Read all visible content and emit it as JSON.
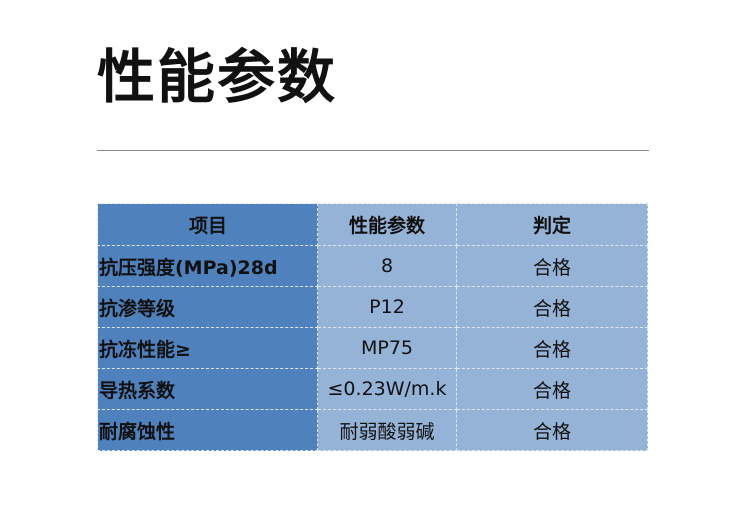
{
  "title": "性能参数",
  "table": {
    "headers": [
      "项目",
      "性能参数",
      "判定"
    ],
    "rows": [
      [
        "抗压强度(MPa)28d",
        "8",
        "合格"
      ],
      [
        "抗渗等级",
        "P12",
        "合格"
      ],
      [
        "抗冻性能≥",
        "MP75",
        "合格"
      ],
      [
        "导热系数",
        "≤0.23W/m.k",
        "合格"
      ],
      [
        "耐腐蚀性",
        "耐弱酸弱碱",
        "合格"
      ]
    ]
  },
  "colors": {
    "first_column": "#4f81bd",
    "other_columns": "#95b3d7"
  }
}
